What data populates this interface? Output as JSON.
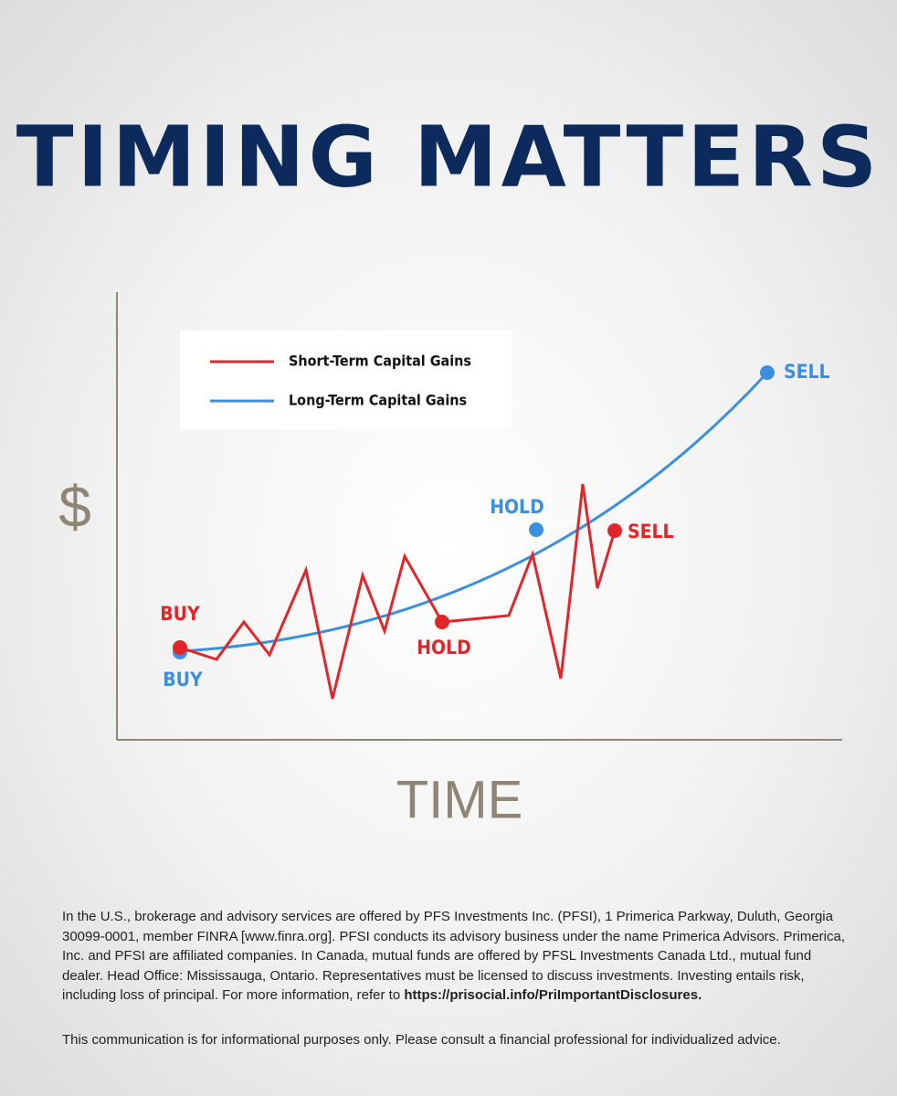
{
  "header": {
    "title": "TIMING MATTERS"
  },
  "axes": {
    "y_label": "$",
    "x_label": "TIME"
  },
  "legend": [
    {
      "label": "Short-Term Capital Gains",
      "color": "#e0262b"
    },
    {
      "label": "Long-Term Capital Gains",
      "color": "#3a8fde"
    }
  ],
  "annotations": {
    "short_buy": "BUY",
    "short_hold": "HOLD",
    "short_sell": "SELL",
    "long_buy": "BUY",
    "long_hold": "HOLD",
    "long_sell": "SELL"
  },
  "footer": {
    "disclosure": "In the U.S., brokerage and advisory services are offered by PFS Investments Inc. (PFSI), 1 Primerica Parkway, Duluth, Georgia 30099-0001, member FINRA [www.finra.org]. PFSI conducts its advisory business under the name Primerica Advisors. Primerica, Inc. and PFSI are affiliated companies. In Canada, mutual funds are offered by PFSL Investments Canada Ltd., mutual fund dealer. Head Office: Mississauga, Ontario. Representatives must be licensed to discuss investments. Investing entails risk, including loss of principal. For more information, refer to",
    "link": "https://prisocial.info/PriImportantDisclosures.",
    "note": "This communication is for informational purposes only. Please consult a financial professional for individualized advice."
  }
}
